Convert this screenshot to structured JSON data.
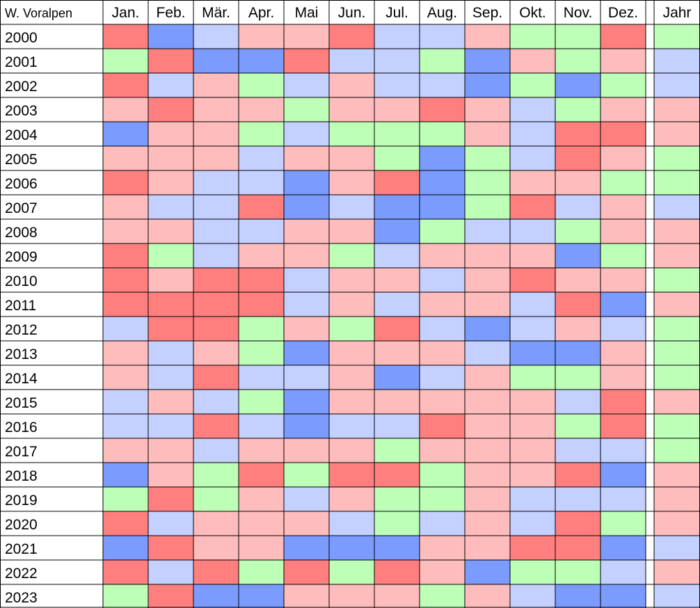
{
  "chart_data": {
    "type": "heatmap",
    "corner_label": "W. Voralpen",
    "months": [
      "Jan.",
      "Feb.",
      "Mär.",
      "Apr.",
      "Mai",
      "Jun.",
      "Jul.",
      "Aug.",
      "Sep.",
      "Okt.",
      "Nov.",
      "Dez."
    ],
    "year_header": "Jahr",
    "colors": {
      "1": "#ff7f7f",
      "2": "#ffbcbc",
      "3": "#c4d0ff",
      "4": "#7b9bff",
      "5": "#bdffb6"
    },
    "rows": [
      {
        "year": "2000",
        "cells": [
          1,
          4,
          3,
          2,
          2,
          1,
          3,
          3,
          2,
          5,
          5,
          1
        ],
        "jahr": 5
      },
      {
        "year": "2001",
        "cells": [
          5,
          1,
          4,
          4,
          1,
          3,
          3,
          5,
          4,
          2,
          5,
          2
        ],
        "jahr": 3
      },
      {
        "year": "2002",
        "cells": [
          1,
          3,
          2,
          5,
          3,
          2,
          3,
          3,
          4,
          5,
          4,
          5
        ],
        "jahr": 3
      },
      {
        "year": "2003",
        "cells": [
          2,
          1,
          2,
          2,
          5,
          2,
          2,
          1,
          2,
          3,
          5,
          2
        ],
        "jahr": 2
      },
      {
        "year": "2004",
        "cells": [
          4,
          2,
          2,
          5,
          3,
          5,
          5,
          5,
          2,
          3,
          1,
          1
        ],
        "jahr": 2
      },
      {
        "year": "2005",
        "cells": [
          2,
          2,
          2,
          3,
          2,
          2,
          5,
          4,
          5,
          3,
          1,
          2
        ],
        "jahr": 5
      },
      {
        "year": "2006",
        "cells": [
          1,
          2,
          3,
          3,
          4,
          2,
          1,
          4,
          5,
          2,
          2,
          5
        ],
        "jahr": 5
      },
      {
        "year": "2007",
        "cells": [
          2,
          3,
          3,
          1,
          4,
          3,
          4,
          4,
          5,
          1,
          3,
          2
        ],
        "jahr": 3
      },
      {
        "year": "2008",
        "cells": [
          2,
          2,
          3,
          3,
          2,
          2,
          4,
          5,
          3,
          3,
          5,
          2
        ],
        "jahr": 2
      },
      {
        "year": "2009",
        "cells": [
          1,
          5,
          3,
          2,
          2,
          5,
          3,
          2,
          2,
          2,
          4,
          5
        ],
        "jahr": 2
      },
      {
        "year": "2010",
        "cells": [
          1,
          2,
          1,
          1,
          3,
          2,
          2,
          3,
          2,
          1,
          2,
          2
        ],
        "jahr": 5
      },
      {
        "year": "2011",
        "cells": [
          1,
          1,
          1,
          1,
          3,
          2,
          3,
          2,
          2,
          3,
          1,
          4
        ],
        "jahr": 2
      },
      {
        "year": "2012",
        "cells": [
          3,
          1,
          1,
          5,
          2,
          5,
          1,
          3,
          4,
          3,
          2,
          3
        ],
        "jahr": 5
      },
      {
        "year": "2013",
        "cells": [
          2,
          3,
          2,
          5,
          4,
          2,
          2,
          2,
          3,
          4,
          4,
          2
        ],
        "jahr": 5
      },
      {
        "year": "2014",
        "cells": [
          2,
          3,
          1,
          3,
          3,
          2,
          4,
          3,
          2,
          5,
          5,
          2
        ],
        "jahr": 5
      },
      {
        "year": "2015",
        "cells": [
          3,
          2,
          3,
          5,
          4,
          2,
          2,
          2,
          2,
          2,
          3,
          1
        ],
        "jahr": 2
      },
      {
        "year": "2016",
        "cells": [
          3,
          3,
          1,
          3,
          4,
          3,
          3,
          1,
          2,
          2,
          5,
          1
        ],
        "jahr": 5
      },
      {
        "year": "2017",
        "cells": [
          2,
          2,
          3,
          2,
          2,
          2,
          5,
          2,
          2,
          2,
          3,
          3
        ],
        "jahr": 5
      },
      {
        "year": "2018",
        "cells": [
          4,
          2,
          5,
          1,
          5,
          1,
          1,
          5,
          2,
          2,
          1,
          4
        ],
        "jahr": 2
      },
      {
        "year": "2019",
        "cells": [
          5,
          1,
          5,
          2,
          3,
          2,
          5,
          5,
          2,
          3,
          3,
          3
        ],
        "jahr": 2
      },
      {
        "year": "2020",
        "cells": [
          1,
          3,
          2,
          2,
          2,
          3,
          5,
          3,
          2,
          3,
          1,
          5
        ],
        "jahr": 2
      },
      {
        "year": "2021",
        "cells": [
          4,
          1,
          2,
          2,
          4,
          4,
          4,
          2,
          2,
          1,
          1,
          4
        ],
        "jahr": 3
      },
      {
        "year": "2022",
        "cells": [
          1,
          3,
          1,
          5,
          1,
          5,
          1,
          2,
          4,
          5,
          5,
          3
        ],
        "jahr": 2
      },
      {
        "year": "2023",
        "cells": [
          5,
          1,
          4,
          4,
          2,
          2,
          2,
          5,
          2,
          3,
          4,
          4
        ],
        "jahr": 3
      }
    ]
  }
}
